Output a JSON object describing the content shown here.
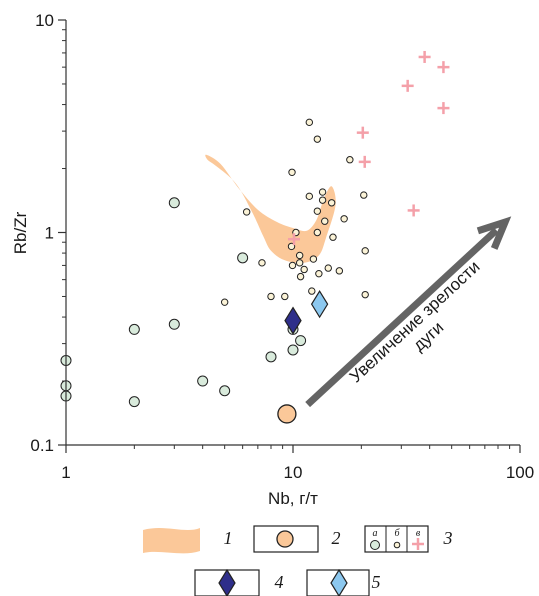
{
  "chart_data": {
    "type": "scatter",
    "x_scale": "log",
    "y_scale": "log",
    "xlim": [
      1,
      100
    ],
    "ylim": [
      0.1,
      10
    ],
    "xlabel": "Nb, г/т",
    "ylabel": "Rb/Zr",
    "x_ticks": [
      {
        "value": 1,
        "label": "1"
      },
      {
        "value": 10,
        "label": "10"
      },
      {
        "value": 100,
        "label": "100"
      }
    ],
    "y_ticks": [
      {
        "value": 0.1,
        "label": "0.1"
      },
      {
        "value": 1,
        "label": "1"
      },
      {
        "value": 10,
        "label": "10"
      }
    ],
    "grid": false,
    "colors": {
      "field": "#fbc899",
      "group_a": "#d9ebdc",
      "group_b": "#fbf3d7",
      "group_v": "#f4a0a9",
      "point_2": "#fbc899",
      "point_4": "#2e2e8a",
      "point_5": "#8cc8ef",
      "arrow": "#646464"
    },
    "field_1": {
      "label": "1",
      "polygon": [
        [
          4.15,
          2.32
        ],
        [
          4.8,
          2.1
        ],
        [
          5.8,
          1.6
        ],
        [
          7.0,
          1.28
        ],
        [
          8.5,
          1.12
        ],
        [
          10.0,
          1.05
        ],
        [
          11.5,
          1.02
        ],
        [
          12.7,
          1.15
        ],
        [
          13.7,
          1.45
        ],
        [
          14.8,
          1.65
        ],
        [
          15.4,
          1.35
        ],
        [
          14.0,
          0.95
        ],
        [
          13.0,
          0.78
        ],
        [
          11.2,
          0.72
        ],
        [
          9.2,
          0.74
        ],
        [
          8.0,
          0.82
        ],
        [
          7.4,
          0.96
        ],
        [
          6.6,
          1.25
        ],
        [
          5.6,
          1.7
        ],
        [
          4.6,
          2.05
        ],
        [
          4.2,
          2.2
        ]
      ]
    },
    "series": [
      {
        "label": "а",
        "marker": "circle-large",
        "points": [
          [
            1,
            0.25
          ],
          [
            1,
            0.19
          ],
          [
            1,
            0.17
          ],
          [
            2,
            0.35
          ],
          [
            2,
            0.16
          ],
          [
            3,
            0.37
          ],
          [
            3,
            1.38
          ],
          [
            4,
            0.2
          ],
          [
            5,
            0.18
          ],
          [
            6,
            0.76
          ],
          [
            8,
            0.26
          ],
          [
            10,
            0.28
          ],
          [
            10.8,
            0.31
          ],
          [
            10,
            0.35
          ]
        ]
      },
      {
        "label": "б",
        "marker": "circle-small",
        "points": [
          [
            11.8,
            3.3
          ],
          [
            12.8,
            2.75
          ],
          [
            17.8,
            2.2
          ],
          [
            9.9,
            1.92
          ],
          [
            6.25,
            1.25
          ],
          [
            11.8,
            1.48
          ],
          [
            13.5,
            1.55
          ],
          [
            13.5,
            1.42
          ],
          [
            14.8,
            1.38
          ],
          [
            20.5,
            1.5
          ],
          [
            12.8,
            1.26
          ],
          [
            16.8,
            1.16
          ],
          [
            13.8,
            1.13
          ],
          [
            12.8,
            1.0
          ],
          [
            10.3,
            1.0
          ],
          [
            15.0,
            0.95
          ],
          [
            9.85,
            0.86
          ],
          [
            10.7,
            0.78
          ],
          [
            20.8,
            0.82
          ],
          [
            7.3,
            0.72
          ],
          [
            12.3,
            0.75
          ],
          [
            10.7,
            0.72
          ],
          [
            9.95,
            0.7
          ],
          [
            11.2,
            0.67
          ],
          [
            13.0,
            0.64
          ],
          [
            14.3,
            0.68
          ],
          [
            16.0,
            0.66
          ],
          [
            10.8,
            0.62
          ],
          [
            8.0,
            0.5
          ],
          [
            9.2,
            0.5
          ],
          [
            20.8,
            0.51
          ],
          [
            5.0,
            0.47
          ],
          [
            12.1,
            0.53
          ]
        ]
      },
      {
        "label": "в",
        "marker": "plus",
        "points": [
          [
            38,
            6.7
          ],
          [
            46,
            6.0
          ],
          [
            32,
            4.9
          ],
          [
            46,
            3.85
          ],
          [
            20.3,
            2.95
          ],
          [
            20.7,
            2.15
          ],
          [
            34,
            1.27
          ],
          [
            10.1,
            0.93
          ]
        ]
      },
      {
        "label": "2",
        "marker": "circle-xl",
        "points": [
          [
            9.4,
            0.14
          ]
        ]
      },
      {
        "label": "4",
        "marker": "diamond",
        "points": [
          [
            10.0,
            0.385
          ]
        ]
      },
      {
        "label": "5",
        "marker": "diamond",
        "points": [
          [
            13.1,
            0.46
          ]
        ]
      }
    ],
    "arrow": {
      "from": [
        11.6,
        0.155
      ],
      "to": [
        86,
        1.12
      ],
      "label": "Увеличение зрелости дуги",
      "label_lines": [
        "Увеличение зрелости",
        "дуги"
      ]
    },
    "legend": {
      "placement": "bottom",
      "items": [
        {
          "number": "1",
          "symbol": "field"
        },
        {
          "number": "2",
          "symbol": "circle-xl"
        },
        {
          "number": "3",
          "symbol": "group",
          "sub_labels": [
            "а",
            "б",
            "в"
          ]
        },
        {
          "number": "4",
          "symbol": "diamond-dark"
        },
        {
          "number": "5",
          "symbol": "diamond-light"
        }
      ]
    }
  }
}
